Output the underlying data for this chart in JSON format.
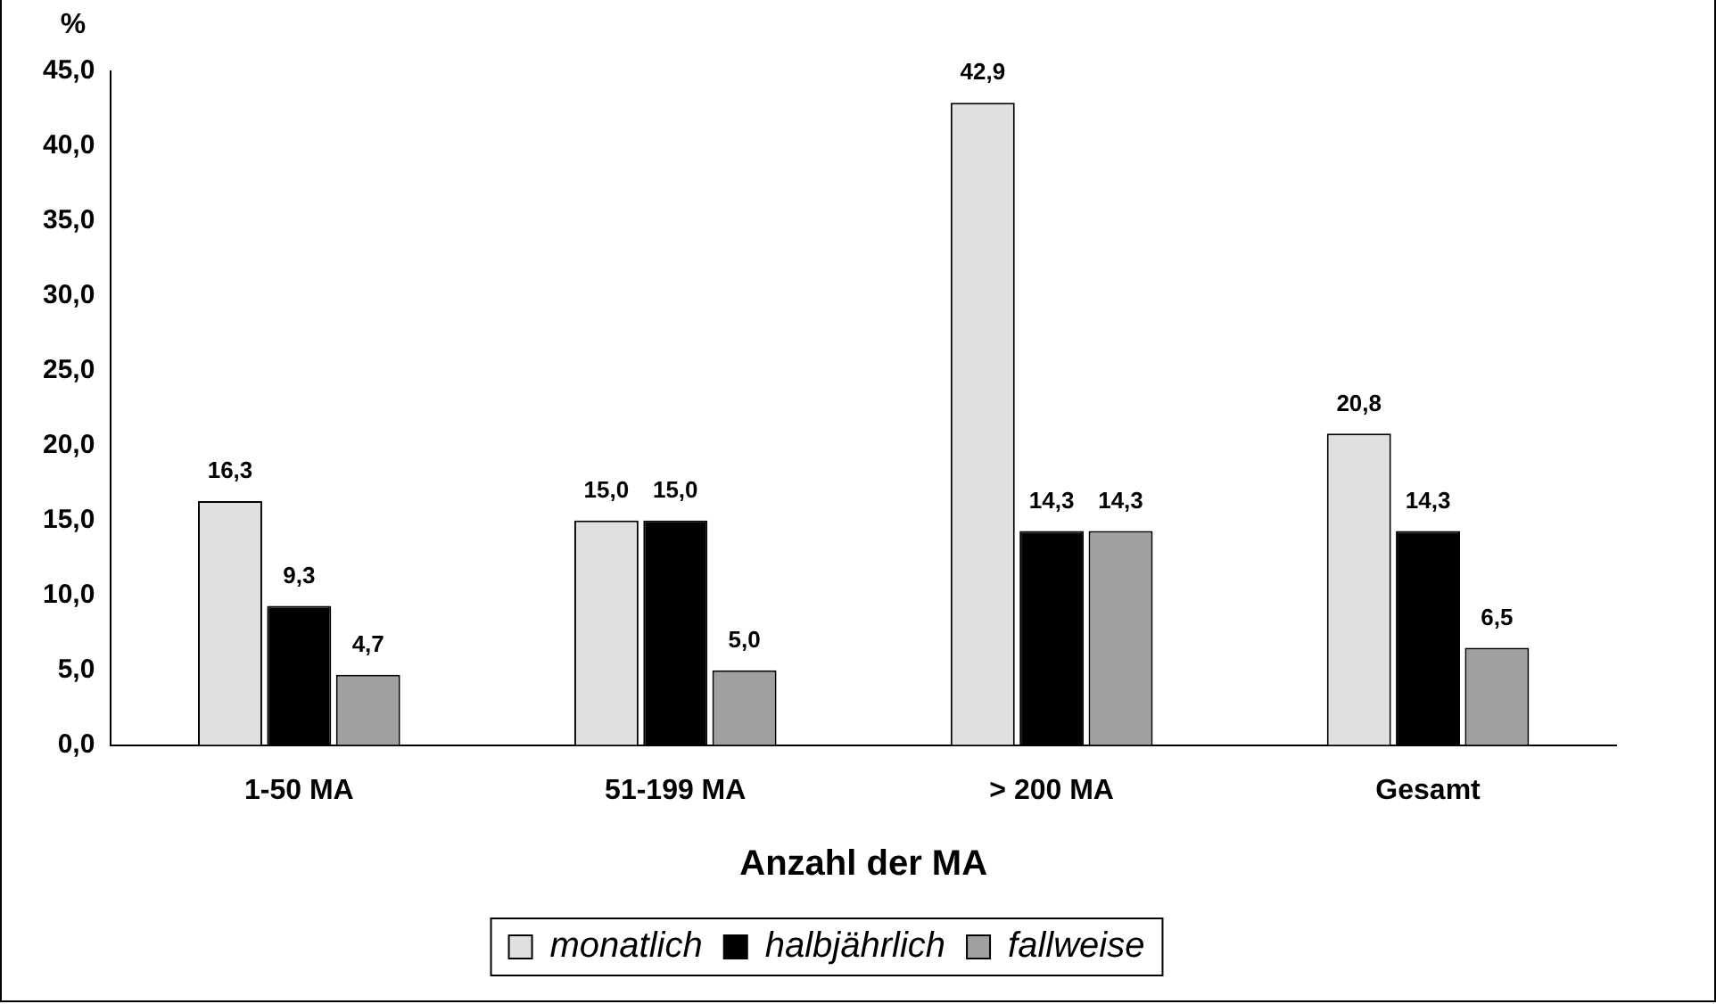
{
  "chart_data": {
    "type": "bar",
    "xlabel": "Anzahl der MA",
    "ylabel": "%",
    "categories": [
      "1-50 MA",
      "51-199 MA",
      "> 200 MA",
      "Gesamt"
    ],
    "series": [
      {
        "name": "monatlich",
        "color": "#e0e0e0",
        "values": [
          16.3,
          15.0,
          42.9,
          20.8
        ],
        "value_labels": [
          "16,3",
          "15,0",
          "42,9",
          "20,8"
        ]
      },
      {
        "name": "halbjährlich",
        "color": "#000000",
        "values": [
          9.3,
          15.0,
          14.3,
          14.3
        ],
        "value_labels": [
          "9,3",
          "15,0",
          "14,3",
          "14,3"
        ]
      },
      {
        "name": "fallweise",
        "color": "#a0a0a0",
        "values": [
          4.7,
          5.0,
          14.3,
          6.5
        ],
        "value_labels": [
          "4,7",
          "5,0",
          "14,3",
          "6,5"
        ]
      }
    ],
    "ylim": [
      0,
      45
    ],
    "yticks": [
      {
        "value": 0,
        "label": "0,0"
      },
      {
        "value": 5,
        "label": "5,0"
      },
      {
        "value": 10,
        "label": "10,0"
      },
      {
        "value": 15,
        "label": "15,0"
      },
      {
        "value": 20,
        "label": "20,0"
      },
      {
        "value": 25,
        "label": "25,0"
      },
      {
        "value": 30,
        "label": "30,0"
      },
      {
        "value": 35,
        "label": "35,0"
      },
      {
        "value": 40,
        "label": "40,0"
      },
      {
        "value": 45,
        "label": "45,0"
      }
    ],
    "grid": false,
    "legend": "bottom"
  }
}
